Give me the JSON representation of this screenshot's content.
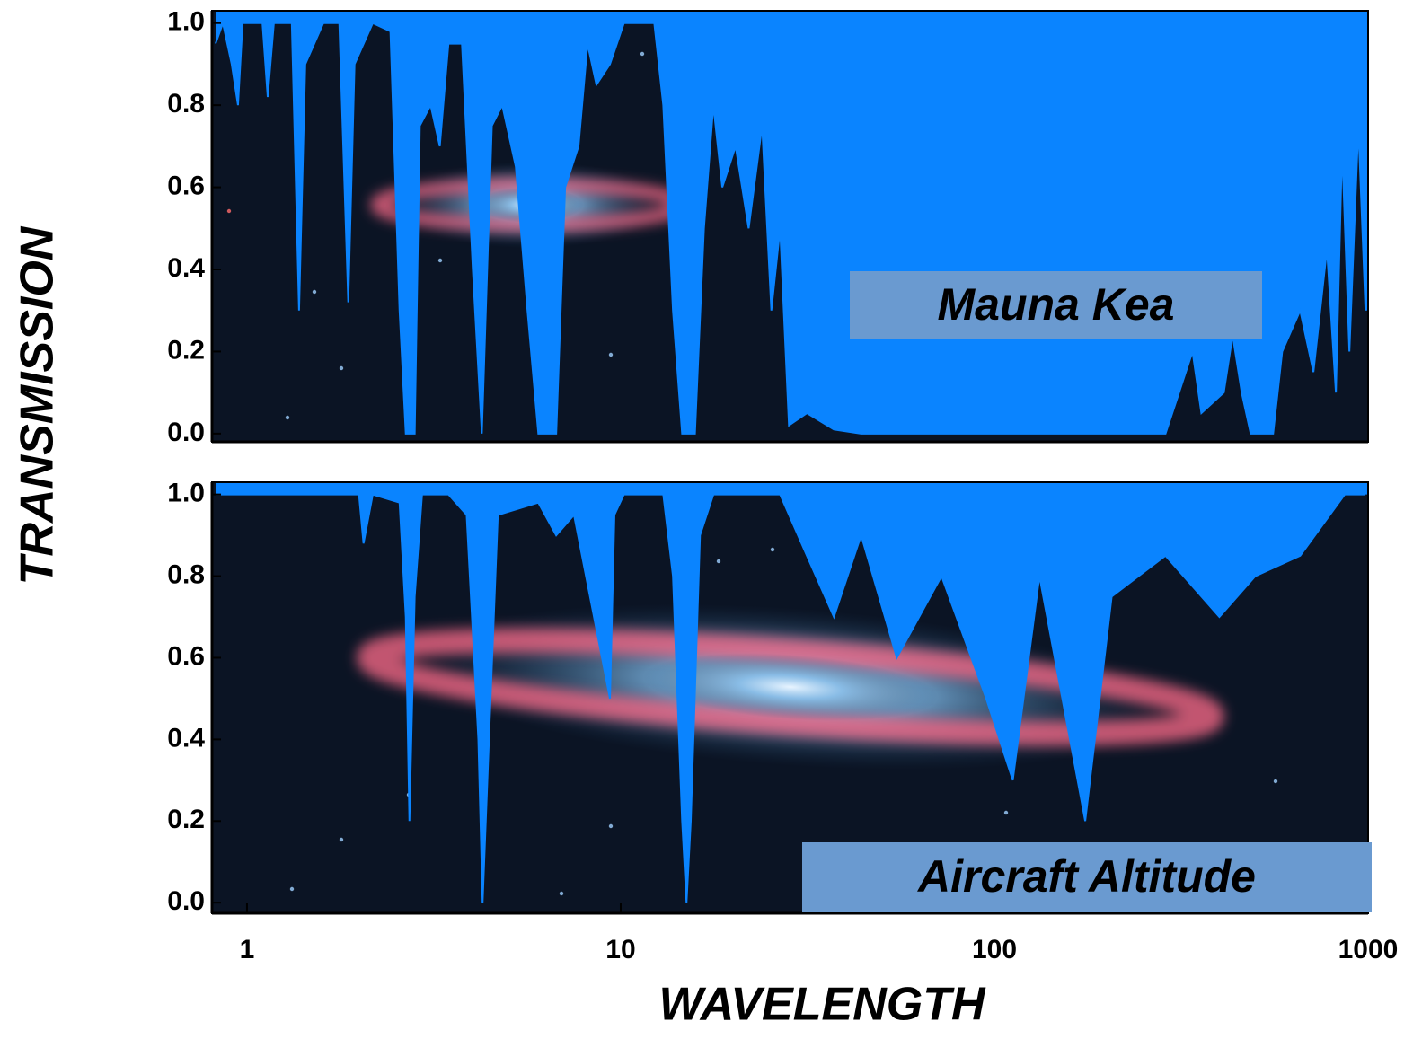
{
  "chart_data": [
    {
      "type": "area",
      "ylabel": "TRANSMISSION",
      "annotation": "Mauna Kea",
      "color": "#0a84ff",
      "log_x": true,
      "xlim": [
        0.806,
        1000
      ],
      "ylim": [
        -0.02,
        1.03
      ],
      "yticks": [
        {
          "value": 0,
          "label": "0.0"
        },
        {
          "value": 0.2,
          "label": "0.2"
        },
        {
          "value": 0.4,
          "label": "0.4"
        },
        {
          "value": 0.6,
          "label": "0.6"
        },
        {
          "value": 0.8,
          "label": "0.8"
        },
        {
          "value": 1,
          "label": "1.0"
        }
      ],
      "x": [
        0.824,
        0.862,
        0.91,
        0.946,
        0.973,
        1.1,
        1.136,
        1.18,
        1.318,
        1.378,
        1.432,
        1.6,
        1.766,
        1.866,
        1.94,
        2.17,
        2.42,
        2.56,
        2.66,
        2.81,
        2.9,
        3.1,
        3.28,
        3.46,
        3.76,
        4.02,
        4.25,
        4.52,
        4.82,
        5.24,
        5.63,
        6.02,
        6.72,
        7.1,
        7.71,
        8.15,
        8.61,
        9.36,
        10.2,
        12.3,
        13.0,
        13.8,
        14.6,
        15.8,
        16.7,
        17.7,
        18.7,
        20.3,
        22.0,
        23.9,
        25.3,
        26.7,
        28.2,
        31.5,
        37.2,
        44,
        287,
        312,
        339,
        358,
        411,
        434,
        459,
        485,
        557,
        589,
        658,
        714,
        776,
        820,
        852,
        891,
        942,
        984
      ],
      "values": [
        0.95,
        1.0,
        0.9,
        0.8,
        1.0,
        1.0,
        0.82,
        1.0,
        1.0,
        0.3,
        0.9,
        1.0,
        1.0,
        0.32,
        0.9,
        1.0,
        0.98,
        0.3,
        0.0,
        0.0,
        0.75,
        0.8,
        0.7,
        0.95,
        0.95,
        0.4,
        0.0,
        0.75,
        0.8,
        0.65,
        0.3,
        0.0,
        0.0,
        0.6,
        0.7,
        0.95,
        0.85,
        0.9,
        1.0,
        1.0,
        0.8,
        0.3,
        0.0,
        0.0,
        0.5,
        0.8,
        0.6,
        0.7,
        0.5,
        0.75,
        0.3,
        0.5,
        0.02,
        0.05,
        0.01,
        0.0,
        0.0,
        0.1,
        0.2,
        0.05,
        0.1,
        0.24,
        0.1,
        0.0,
        0.0,
        0.2,
        0.3,
        0.15,
        0.45,
        0.1,
        0.7,
        0.2,
        0.75,
        0.3
      ]
    },
    {
      "type": "area",
      "xlabel": "WAVELENGTH",
      "annotation": "Aircraft Altitude",
      "color": "#0a84ff",
      "log_x": true,
      "xlim": [
        0.806,
        1000
      ],
      "ylim": [
        -0.026,
        1.03
      ],
      "xticks": [
        1,
        10,
        100,
        1000
      ],
      "yticks": [
        {
          "value": 0,
          "label": "0.0"
        },
        {
          "value": 0.2,
          "label": "0.2"
        },
        {
          "value": 0.4,
          "label": "0.4"
        },
        {
          "value": 0.6,
          "label": "0.6"
        },
        {
          "value": 0.8,
          "label": "0.8"
        },
        {
          "value": 1,
          "label": "1.0"
        }
      ],
      "x": [
        0.824,
        1.994,
        2.05,
        2.17,
        2.56,
        2.66,
        2.72,
        2.81,
        2.94,
        3.46,
        3.87,
        4.16,
        4.27,
        4.44,
        4.69,
        6.02,
        6.72,
        7.5,
        9.36,
        9.62,
        10.2,
        13.0,
        13.8,
        14.6,
        15.0,
        15.4,
        16.3,
        17.7,
        26.7,
        31.5,
        37.2,
        44,
        54.8,
        72.2,
        95.1,
        112,
        132,
        175,
        206,
        287,
        400,
        499,
        658,
        866,
        984
      ],
      "values": [
        1.0,
        1.0,
        0.88,
        1.0,
        0.98,
        0.7,
        0.2,
        0.75,
        1.0,
        1.0,
        0.95,
        0.4,
        0.0,
        0.4,
        0.95,
        0.98,
        0.9,
        0.95,
        0.5,
        0.95,
        1.0,
        1.0,
        0.8,
        0.2,
        0.0,
        0.2,
        0.9,
        1.0,
        1.0,
        0.85,
        0.7,
        0.9,
        0.6,
        0.8,
        0.5,
        0.3,
        0.8,
        0.2,
        0.75,
        0.85,
        0.7,
        0.8,
        0.85,
        1.0,
        1.0
      ]
    }
  ]
}
